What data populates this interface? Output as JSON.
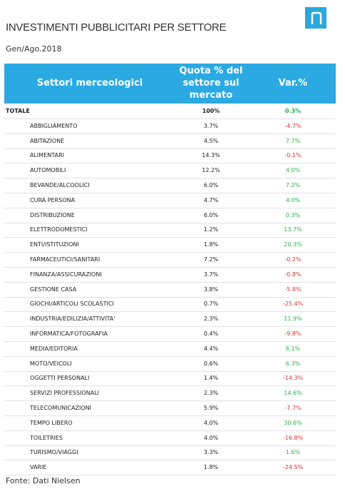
{
  "header": {
    "title": "INVESTIMENTI PUBBLICITARI PER SETTORE",
    "subtitle": "Gen/Ago.2018"
  },
  "table": {
    "columns": [
      "Settori merceologici",
      "Quota % del settore sul mercato",
      "Var.%"
    ],
    "rows": [
      [
        "TOTALE",
        "100%",
        "0.3%"
      ],
      [
        "ABBIGLIAMENTO",
        "3.7%",
        "-4.7%"
      ],
      [
        "ABITAZIONE",
        "4.5%",
        "7.7%"
      ],
      [
        "ALIMENTARI",
        "14.3%",
        "-0.1%"
      ],
      [
        "AUTOMOBILI",
        "12.2%",
        "4.0%"
      ],
      [
        "BEVANDE/ALCOOLICI",
        "6.0%",
        "7.2%"
      ],
      [
        "CURA PERSONA",
        "4.7%",
        "4.0%"
      ],
      [
        "DISTRIBUZIONE",
        "6.0%",
        "0.3%"
      ],
      [
        "ELETTRODOMESTICI",
        "1.2%",
        "13.7%"
      ],
      [
        "ENTI/ISTITUZIONI",
        "1.8%",
        "20.3%"
      ],
      [
        "FARMACEUTICI/SANITARI",
        "7.2%",
        "-0.2%"
      ],
      [
        "FINANZA/ASSICURAZIONI",
        "3.7%",
        "-0.8%"
      ],
      [
        "GESTIONE CASA",
        "3.8%",
        "-5.8%"
      ],
      [
        "GIOCHI/ARTICOLI SCOLASTICI",
        "0.7%",
        "-25.4%"
      ],
      [
        "INDUSTRIA/EDILIZIA/ATTIVITA'",
        "2.3%",
        "11.9%"
      ],
      [
        "INFORMATICA/FOTOGRAFIA",
        "0.4%",
        "-9.8%"
      ],
      [
        "MEDIA/EDITORIA",
        "4.4%",
        "6.1%"
      ],
      [
        "MOTO/VEICOLI",
        "0.6%",
        "6.3%"
      ],
      [
        "OGGETTI PERSONALI",
        "1.4%",
        "-14.3%"
      ],
      [
        "SERVIZI PROFESSIONALI",
        "2.3%",
        "14.6%"
      ],
      [
        "TELECOMUNICAZIONI",
        "5.9%",
        "-7.7%"
      ],
      [
        "TEMPO LIBERO",
        "4.0%",
        "30.6%"
      ],
      [
        "TOILETRIES",
        "4.0%",
        "-16.8%"
      ],
      [
        "TURISMO/VIAGGI",
        "3.3%",
        "1.6%"
      ],
      [
        "VARIE",
        "1.8%",
        "-24.5%"
      ]
    ]
  },
  "footer": {
    "source": "Fonte: Dati Nielsen"
  }
}
